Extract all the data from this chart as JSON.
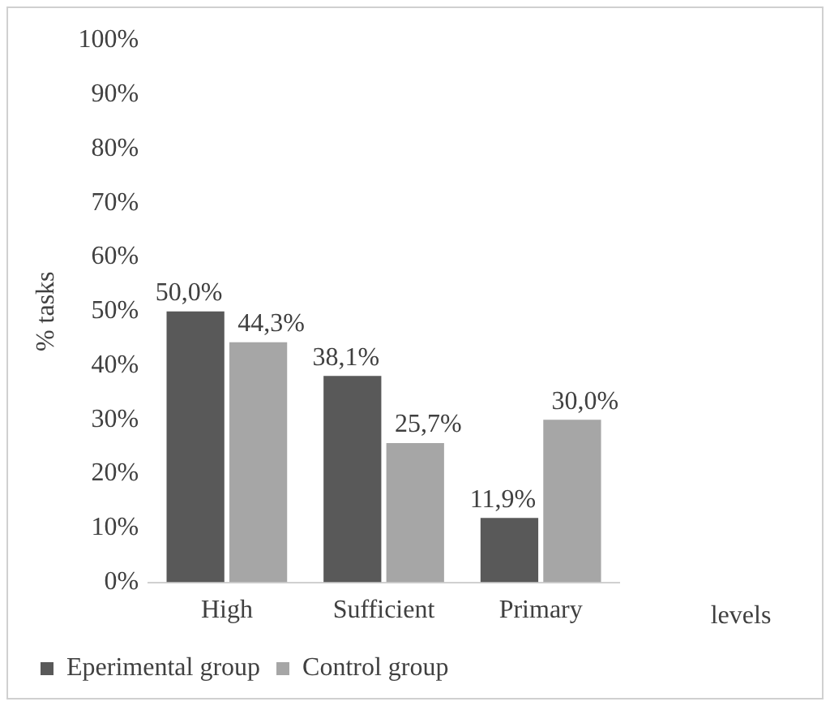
{
  "chart_data": {
    "type": "bar",
    "ylabel": "% tasks",
    "xlabel": "levels",
    "categories": [
      "High",
      "Sufficient",
      "Primary"
    ],
    "series": [
      {
        "name": "Eperimental group",
        "color": "#595959",
        "values": [
          50.0,
          38.1,
          11.9
        ],
        "value_labels": [
          "50,0%",
          "38,1%",
          "11,9%"
        ]
      },
      {
        "name": "Control group",
        "color": "#a6a6a6",
        "values": [
          44.3,
          25.7,
          30.0
        ],
        "value_labels": [
          "44,3%",
          "25,7%",
          "30,0%"
        ]
      }
    ],
    "ylim": [
      0,
      100
    ],
    "yticks": [
      {
        "value": 0,
        "label": "0%"
      },
      {
        "value": 10,
        "label": "10%"
      },
      {
        "value": 20,
        "label": "20%"
      },
      {
        "value": 30,
        "label": "30%"
      },
      {
        "value": 40,
        "label": "40%"
      },
      {
        "value": 50,
        "label": "50%"
      },
      {
        "value": 60,
        "label": "60%"
      },
      {
        "value": 70,
        "label": "70%"
      },
      {
        "value": 80,
        "label": "80%"
      },
      {
        "value": 90,
        "label": "90%"
      },
      {
        "value": 100,
        "label": "100%"
      }
    ],
    "grid": false,
    "legend": "bottom"
  }
}
